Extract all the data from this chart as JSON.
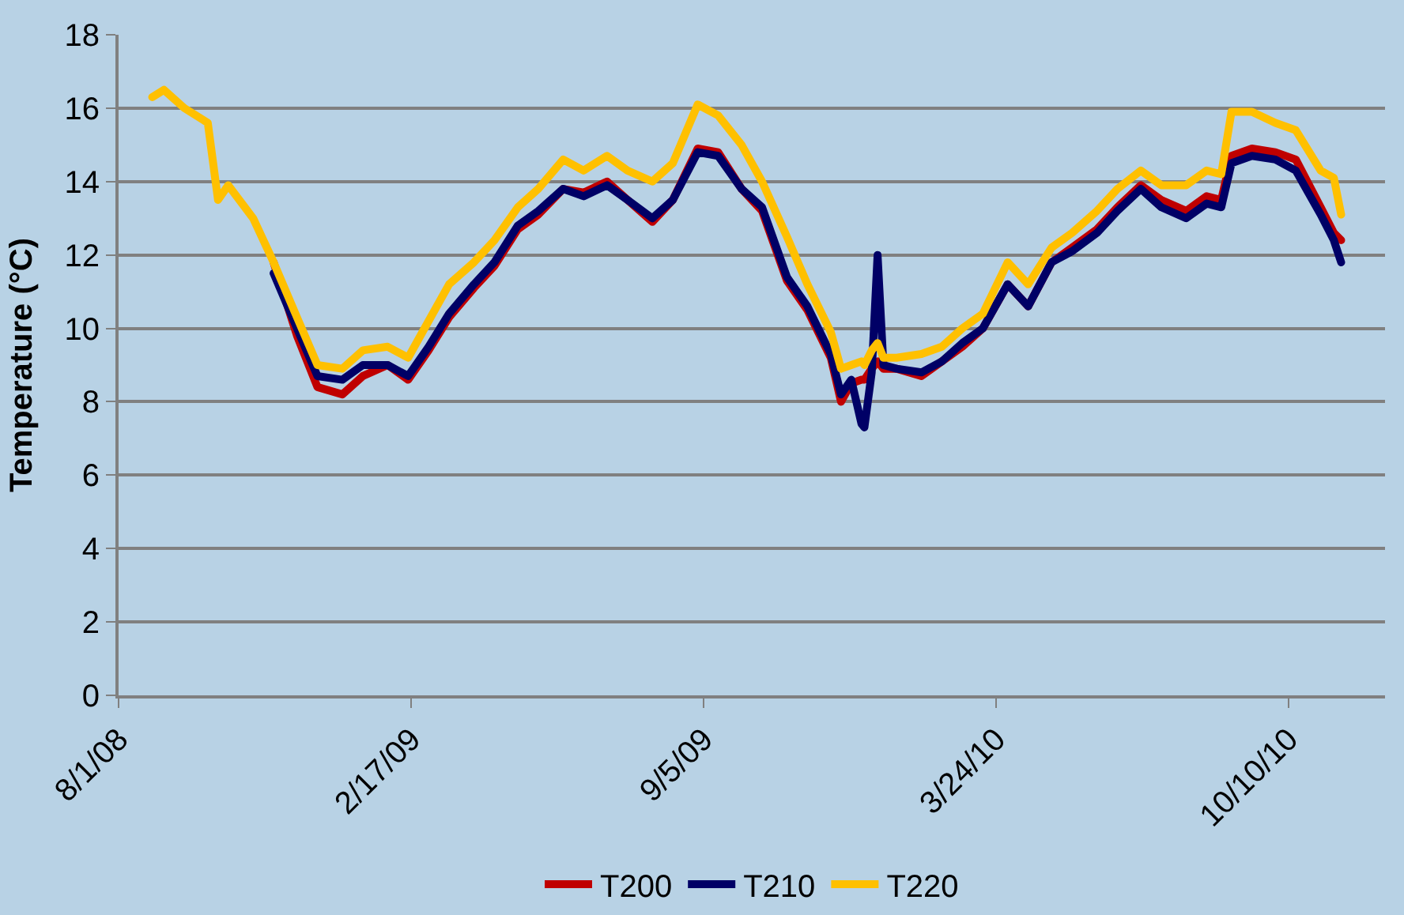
{
  "chart_data": {
    "type": "line",
    "ylabel": "Temperature (°C)",
    "x": [
      "2008-08-24",
      "2008-09-01",
      "2008-09-15",
      "2008-10-01",
      "2008-10-08",
      "2008-10-15",
      "2008-11-01",
      "2008-11-15",
      "2008-12-01",
      "2008-12-15",
      "2009-01-01",
      "2009-01-15",
      "2009-02-01",
      "2009-02-15",
      "2009-03-01",
      "2009-03-15",
      "2009-04-01",
      "2009-04-15",
      "2009-05-01",
      "2009-05-15",
      "2009-06-01",
      "2009-06-15",
      "2009-07-01",
      "2009-07-15",
      "2009-08-01",
      "2009-08-15",
      "2009-09-01",
      "2009-09-15",
      "2009-10-01",
      "2009-10-15",
      "2009-11-01",
      "2009-11-15",
      "2009-12-01",
      "2009-12-08",
      "2009-12-15",
      "2009-12-22",
      "2009-12-24",
      "2009-12-29",
      "2010-01-02",
      "2010-01-06",
      "2010-01-15",
      "2010-02-01",
      "2010-02-15",
      "2010-03-01",
      "2010-03-15",
      "2010-04-01",
      "2010-04-15",
      "2010-05-01",
      "2010-05-15",
      "2010-06-01",
      "2010-06-15",
      "2010-07-01",
      "2010-07-15",
      "2010-08-01",
      "2010-08-15",
      "2010-08-25",
      "2010-09-01",
      "2010-09-15",
      "2010-10-01",
      "2010-10-15",
      "2010-11-01",
      "2010-11-10",
      "2010-11-15"
    ],
    "series": [
      {
        "name": "T200",
        "color": "#c00000",
        "values": [
          null,
          null,
          null,
          null,
          null,
          null,
          null,
          11.8,
          9.8,
          8.4,
          8.2,
          8.7,
          9.0,
          8.6,
          9.4,
          10.3,
          11.1,
          11.7,
          12.7,
          13.1,
          13.8,
          13.7,
          14.0,
          13.5,
          12.9,
          13.5,
          14.9,
          14.8,
          13.8,
          13.2,
          11.3,
          10.5,
          9.2,
          8.0,
          8.5,
          8.6,
          8.6,
          8.9,
          9.1,
          8.9,
          8.9,
          8.7,
          9.1,
          9.5,
          10.0,
          11.2,
          10.6,
          11.8,
          12.2,
          12.7,
          13.3,
          13.9,
          13.5,
          13.2,
          13.6,
          13.5,
          14.7,
          14.9,
          14.8,
          14.6,
          13.3,
          12.6,
          12.4
        ]
      },
      {
        "name": "T210",
        "color": "#000066",
        "values": [
          null,
          null,
          null,
          null,
          null,
          null,
          null,
          11.5,
          10.0,
          8.7,
          8.6,
          9.0,
          9.0,
          8.7,
          9.5,
          10.4,
          11.2,
          11.8,
          12.8,
          13.2,
          13.8,
          13.6,
          13.9,
          13.5,
          13.0,
          13.5,
          14.8,
          14.7,
          13.8,
          13.3,
          11.4,
          10.6,
          9.3,
          8.2,
          8.6,
          7.4,
          7.3,
          8.8,
          12.0,
          9.0,
          8.9,
          8.8,
          9.1,
          9.6,
          10.0,
          11.2,
          10.6,
          11.8,
          12.1,
          12.6,
          13.2,
          13.8,
          13.3,
          13.0,
          13.4,
          13.3,
          14.5,
          14.7,
          14.6,
          14.3,
          13.1,
          12.4,
          11.8
        ]
      },
      {
        "name": "T220",
        "color": "#ffc000",
        "values": [
          16.3,
          16.5,
          16.0,
          15.6,
          13.5,
          13.9,
          13.0,
          11.8,
          10.3,
          9.0,
          8.9,
          9.4,
          9.5,
          9.2,
          10.2,
          11.2,
          11.8,
          12.4,
          13.3,
          13.8,
          14.6,
          14.3,
          14.7,
          14.3,
          14.0,
          14.5,
          16.1,
          15.8,
          15.0,
          14.0,
          12.5,
          11.2,
          9.9,
          8.9,
          9.0,
          9.1,
          9.0,
          9.4,
          9.6,
          9.2,
          9.2,
          9.3,
          9.5,
          10.0,
          10.4,
          11.8,
          11.2,
          12.2,
          12.6,
          13.2,
          13.8,
          14.3,
          13.9,
          13.9,
          14.3,
          14.2,
          15.9,
          15.9,
          15.6,
          15.4,
          14.3,
          14.1,
          13.1
        ]
      }
    ],
    "xlim": [
      "2008-08-01",
      "2010-12-15"
    ],
    "xticks": [
      {
        "value": "2008-08-01",
        "label": "8/1/08"
      },
      {
        "value": "2009-02-17",
        "label": "2/17/09"
      },
      {
        "value": "2009-09-05",
        "label": "9/5/09"
      },
      {
        "value": "2010-03-24",
        "label": "3/24/10"
      },
      {
        "value": "2010-10-10",
        "label": "10/10/10"
      }
    ],
    "ylim": [
      0,
      18
    ],
    "yticks": [
      0,
      2,
      4,
      6,
      8,
      10,
      12,
      14,
      16,
      18
    ],
    "grid": "y",
    "legend": "bottom"
  }
}
